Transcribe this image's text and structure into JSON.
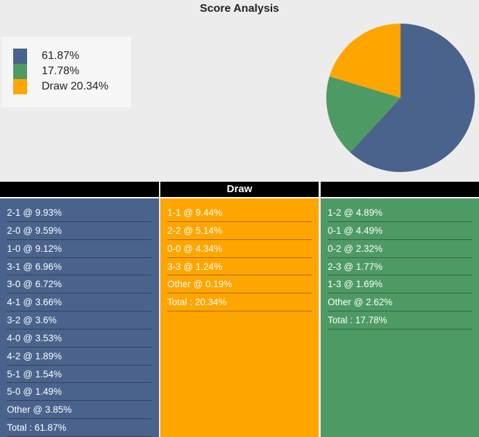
{
  "title": "Score Analysis",
  "colors": {
    "home": "#4a638c",
    "away": "#4e9a64",
    "draw": "#ffa500"
  },
  "chart_data": {
    "type": "pie",
    "title": "Score Analysis",
    "slices": [
      {
        "label": "61.87%",
        "value": 61.87,
        "color": "#4a638c"
      },
      {
        "label": "17.78%",
        "value": 17.78,
        "color": "#4e9a64"
      },
      {
        "label": "Draw 20.34%",
        "value": 20.34,
        "color": "#ffa500"
      }
    ],
    "legend_position": "top-left"
  },
  "columns": {
    "home": {
      "header": "",
      "rows": [
        "2-1 @ 9.93%",
        "2-0 @ 9.59%",
        "1-0 @ 9.12%",
        "3-1 @ 6.96%",
        "3-0 @ 6.72%",
        "4-1 @ 3.66%",
        "3-2 @ 3.6%",
        "4-0 @ 3.53%",
        "4-2 @ 1.89%",
        "5-1 @ 1.54%",
        "5-0 @ 1.49%",
        "Other @ 3.85%",
        "Total : 61.87%"
      ]
    },
    "draw": {
      "header": "Draw",
      "rows": [
        "1-1 @ 9.44%",
        "2-2 @ 5.14%",
        "0-0 @ 4.34%",
        "3-3 @ 1.24%",
        "Other @ 0.19%",
        "Total : 20.34%"
      ]
    },
    "away": {
      "header": "",
      "rows": [
        "1-2 @ 4.89%",
        "0-1 @ 4.49%",
        "0-2 @ 2.32%",
        "2-3 @ 1.77%",
        "1-3 @ 1.69%",
        "Other @ 2.62%",
        "Total : 17.78%"
      ]
    }
  }
}
